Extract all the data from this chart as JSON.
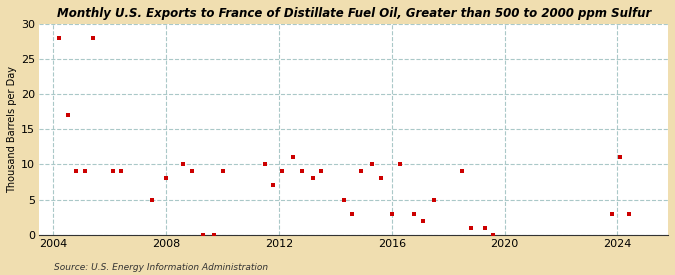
{
  "title": "Monthly U.S. Exports to France of Distillate Fuel Oil, Greater than 500 to 2000 ppm Sulfur",
  "ylabel": "Thousand Barrels per Day",
  "source": "Source: U.S. Energy Information Administration",
  "background_color": "#f0deb0",
  "plot_background_color": "#ffffff",
  "marker_color": "#cc0000",
  "xlim": [
    2003.5,
    2025.8
  ],
  "ylim": [
    0,
    30
  ],
  "yticks": [
    0,
    5,
    10,
    15,
    20,
    25,
    30
  ],
  "xticks": [
    2004,
    2008,
    2012,
    2016,
    2020,
    2024
  ],
  "data_x": [
    2004.2,
    2004.5,
    2004.8,
    2005.1,
    2005.4,
    2006.1,
    2006.4,
    2007.5,
    2008.0,
    2008.6,
    2008.9,
    2009.3,
    2009.7,
    2010.0,
    2011.5,
    2011.8,
    2012.1,
    2012.5,
    2012.8,
    2013.2,
    2013.5,
    2014.3,
    2014.6,
    2014.9,
    2015.3,
    2015.6,
    2016.0,
    2016.3,
    2016.8,
    2017.1,
    2017.5,
    2018.5,
    2018.8,
    2019.3,
    2019.6,
    2023.8,
    2024.1,
    2024.4
  ],
  "data_y": [
    28,
    17,
    9,
    9,
    28,
    9,
    9,
    5,
    8,
    10,
    9,
    0,
    0,
    9,
    10,
    7,
    9,
    11,
    9,
    8,
    9,
    5,
    3,
    9,
    10,
    8,
    3,
    10,
    3,
    2,
    5,
    9,
    1,
    1,
    0,
    3,
    11,
    3
  ]
}
